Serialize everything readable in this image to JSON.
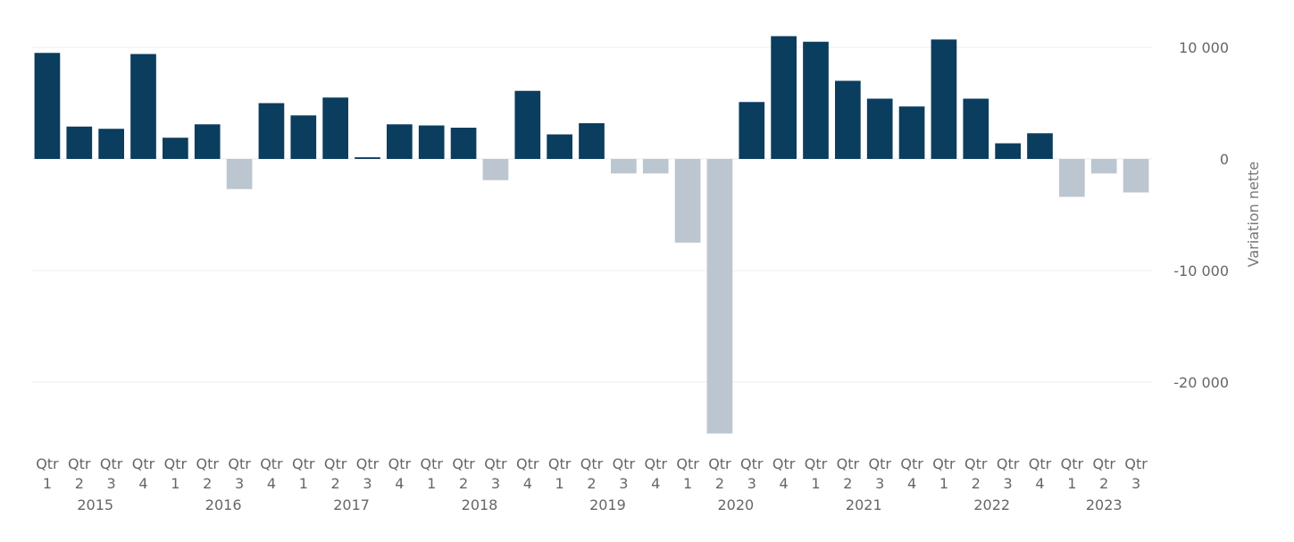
{
  "chart_data": {
    "type": "bar",
    "ylabel": "Variation nette",
    "ylim": [
      -25000,
      10000
    ],
    "yticks": [
      10000,
      0,
      -10000,
      -20000
    ],
    "ytick_labels": [
      "10 000",
      "0",
      "-10 000",
      "-20 000"
    ],
    "grid": true,
    "colors": {
      "positive": "#0a3d5e",
      "negative": "#bcc6d1"
    },
    "years": [
      "2015",
      "2016",
      "2017",
      "2018",
      "2019",
      "2020",
      "2021",
      "2022",
      "2023"
    ],
    "categories": [
      {
        "q": [
          "Qtr",
          "1"
        ],
        "year": "2015",
        "value": 9500
      },
      {
        "q": [
          "Qtr",
          "2"
        ],
        "year": "2015",
        "value": 2900
      },
      {
        "q": [
          "Qtr",
          "3"
        ],
        "year": "2015",
        "value": 2700
      },
      {
        "q": [
          "Qtr",
          "4"
        ],
        "year": "2015",
        "value": 9400
      },
      {
        "q": [
          "Qtr",
          "1"
        ],
        "year": "2016",
        "value": 1900
      },
      {
        "q": [
          "Qtr",
          "2"
        ],
        "year": "2016",
        "value": 3100
      },
      {
        "q": [
          "Qtr",
          "3"
        ],
        "year": "2016",
        "value": -2700
      },
      {
        "q": [
          "Qtr",
          "4"
        ],
        "year": "2016",
        "value": 5000
      },
      {
        "q": [
          "Qtr",
          "1"
        ],
        "year": "2017",
        "value": 3900
      },
      {
        "q": [
          "Qtr",
          "2"
        ],
        "year": "2017",
        "value": 5500
      },
      {
        "q": [
          "Qtr",
          "3"
        ],
        "year": "2017",
        "value": 150
      },
      {
        "q": [
          "Qtr",
          "4"
        ],
        "year": "2017",
        "value": 3100
      },
      {
        "q": [
          "Qtr",
          "1"
        ],
        "year": "2018",
        "value": 3000
      },
      {
        "q": [
          "Qtr",
          "2"
        ],
        "year": "2018",
        "value": 2800
      },
      {
        "q": [
          "Qtr",
          "3"
        ],
        "year": "2018",
        "value": -1900
      },
      {
        "q": [
          "Qtr",
          "4"
        ],
        "year": "2018",
        "value": 6100
      },
      {
        "q": [
          "Qtr",
          "1"
        ],
        "year": "2019",
        "value": 2200
      },
      {
        "q": [
          "Qtr",
          "2"
        ],
        "year": "2019",
        "value": 3200
      },
      {
        "q": [
          "Qtr",
          "3"
        ],
        "year": "2019",
        "value": -1300
      },
      {
        "q": [
          "Qtr",
          "4"
        ],
        "year": "2019",
        "value": -1300
      },
      {
        "q": [
          "Qtr",
          "1"
        ],
        "year": "2020",
        "value": -7500
      },
      {
        "q": [
          "Qtr",
          "2"
        ],
        "year": "2020",
        "value": -24600
      },
      {
        "q": [
          "Qtr",
          "3"
        ],
        "year": "2020",
        "value": 5100
      },
      {
        "q": [
          "Qtr",
          "4"
        ],
        "year": "2020",
        "value": 11000
      },
      {
        "q": [
          "Qtr",
          "1"
        ],
        "year": "2021",
        "value": 10500
      },
      {
        "q": [
          "Qtr",
          "2"
        ],
        "year": "2021",
        "value": 7000
      },
      {
        "q": [
          "Qtr",
          "3"
        ],
        "year": "2021",
        "value": 5400
      },
      {
        "q": [
          "Qtr",
          "4"
        ],
        "year": "2021",
        "value": 4700
      },
      {
        "q": [
          "Qtr",
          "1"
        ],
        "year": "2022",
        "value": 10700
      },
      {
        "q": [
          "Qtr",
          "2"
        ],
        "year": "2022",
        "value": 5400
      },
      {
        "q": [
          "Qtr",
          "3"
        ],
        "year": "2022",
        "value": 1400
      },
      {
        "q": [
          "Qtr",
          "4"
        ],
        "year": "2022",
        "value": 2300
      },
      {
        "q": [
          "Qtr",
          "1"
        ],
        "year": "2023",
        "value": -3400
      },
      {
        "q": [
          "Qtr",
          "2"
        ],
        "year": "2023",
        "value": -1300
      },
      {
        "q": [
          "Qtr",
          "3"
        ],
        "year": "2023",
        "value": -3000
      }
    ]
  }
}
